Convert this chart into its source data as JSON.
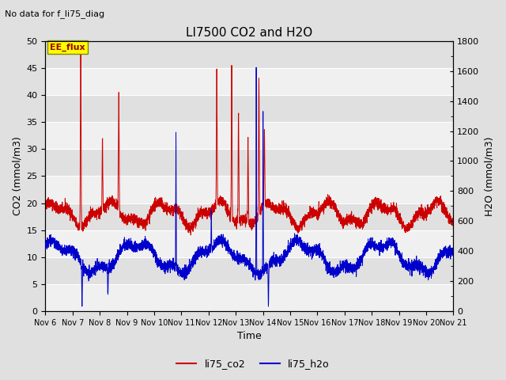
{
  "title": "LI7500 CO2 and H2O",
  "subtitle": "No data for f_li75_diag",
  "xlabel": "Time",
  "ylabel_left": "CO2 (mmol/m3)",
  "ylabel_right": "H2O (mmol/m3)",
  "ylim_left": [
    0,
    50
  ],
  "ylim_right": [
    0,
    1800
  ],
  "yticks_left": [
    0,
    5,
    10,
    15,
    20,
    25,
    30,
    35,
    40,
    45,
    50
  ],
  "yticks_right": [
    0,
    200,
    400,
    600,
    800,
    1000,
    1200,
    1400,
    1600,
    1800
  ],
  "xtick_labels": [
    "Nov 6",
    "Nov 7",
    "Nov 8",
    "Nov 9",
    "Nov 10",
    "Nov 11",
    "Nov 12",
    "Nov 13",
    "Nov 14",
    "Nov 15",
    "Nov 16",
    "Nov 17",
    "Nov 18",
    "Nov 19",
    "Nov 20",
    "Nov 21"
  ],
  "legend_label_co2": "li75_co2",
  "legend_label_h2o": "li75_h2o",
  "color_co2": "#cc0000",
  "color_h2o": "#0000cc",
  "annotation_text": "EE_flux",
  "annotation_bg": "#ffff00",
  "annotation_fg": "#990000",
  "annotation_border": "#888800",
  "bg_color": "#e0e0e0",
  "band_light": "#f0f0f0",
  "band_dark": "#e0e0e0",
  "plot_bg_color": "#e8e8e8",
  "grid_color": "#ffffff"
}
